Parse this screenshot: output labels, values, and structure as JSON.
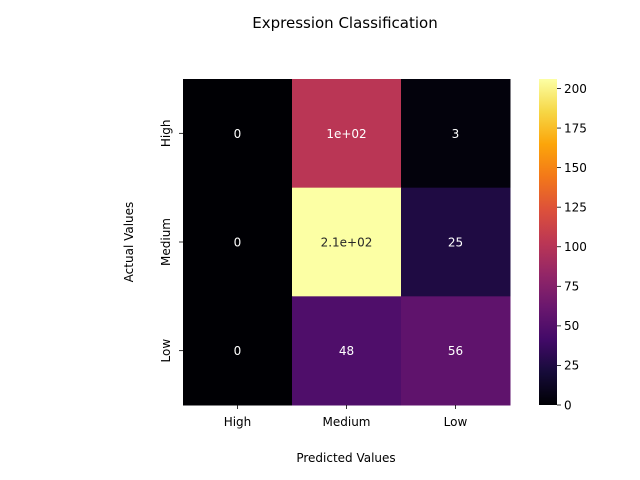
{
  "chart_data": {
    "type": "heatmap",
    "title": "Expression Classification",
    "xlabel": "Predicted Values",
    "ylabel": "Actual Values",
    "x_categories": [
      "High",
      "Medium",
      "Low"
    ],
    "y_categories": [
      "High",
      "Medium",
      "Low"
    ],
    "values": [
      [
        0,
        102,
        3
      ],
      [
        0,
        206,
        25
      ],
      [
        0,
        48,
        56
      ]
    ],
    "annotations": [
      [
        "0",
        "1e+02",
        "3"
      ],
      [
        "0",
        "2.1e+02",
        "25"
      ],
      [
        "0",
        "48",
        "56"
      ]
    ],
    "colormap": "inferno",
    "colorbar": {
      "min": 0,
      "max": 206,
      "ticks": [
        0,
        25,
        50,
        75,
        100,
        125,
        150,
        175,
        200
      ],
      "tick_labels": [
        "0",
        "25",
        "50",
        "75",
        "100",
        "125",
        "150",
        "175",
        "200"
      ]
    }
  }
}
